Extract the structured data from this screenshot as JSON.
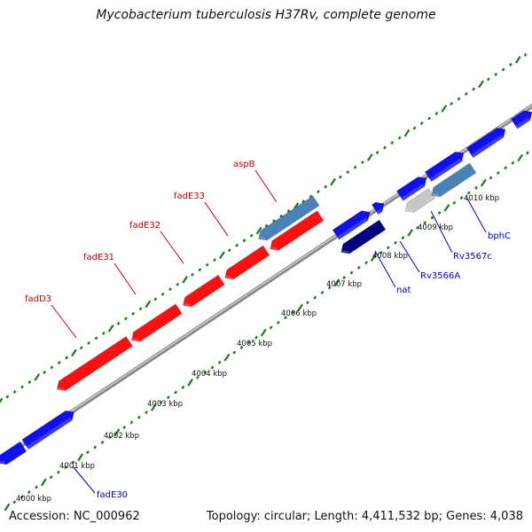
{
  "title": "Mycobacterium tuberculosis H37Rv, complete genome",
  "footer": {
    "accession": "Accession: NC_000962",
    "summary": "Topology: circular; Length: 4,411,532 bp; Genes: 4,038"
  },
  "colors": {
    "backbone": "#8a8a8a",
    "tick": "#1a7a1a",
    "reverse_gene": "#ff1010",
    "forward_gene": "#1010ee",
    "steelblue_gene": "#4a82b8",
    "navy_gene": "#000080",
    "grey_gene": "#c8c8c8",
    "label_red": "#cc0000",
    "label_blue": "#0000cc"
  },
  "scale": {
    "unit": "kbp",
    "labels": [
      "4000 kbp",
      "4001 kbp",
      "4002 kbp",
      "4003 kbp",
      "4004 kbp",
      "4005 kbp",
      "4006 kbp",
      "4007 kbp",
      "4008 kbp",
      "4009 kbp",
      "4010 kbp"
    ]
  },
  "gene_labels": [
    {
      "name": "aspB",
      "color": "label_red"
    },
    {
      "name": "fadE33",
      "color": "label_red"
    },
    {
      "name": "fadE32",
      "color": "label_red"
    },
    {
      "name": "fadE31",
      "color": "label_red"
    },
    {
      "name": "fadD3",
      "color": "label_red"
    },
    {
      "name": "fadE30",
      "color": "label_blue"
    },
    {
      "name": "nat",
      "color": "label_blue"
    },
    {
      "name": "Rv3566A",
      "color": "label_blue"
    },
    {
      "name": "Rv3567c",
      "color": "label_blue"
    },
    {
      "name": "bphC",
      "color": "label_blue"
    }
  ]
}
